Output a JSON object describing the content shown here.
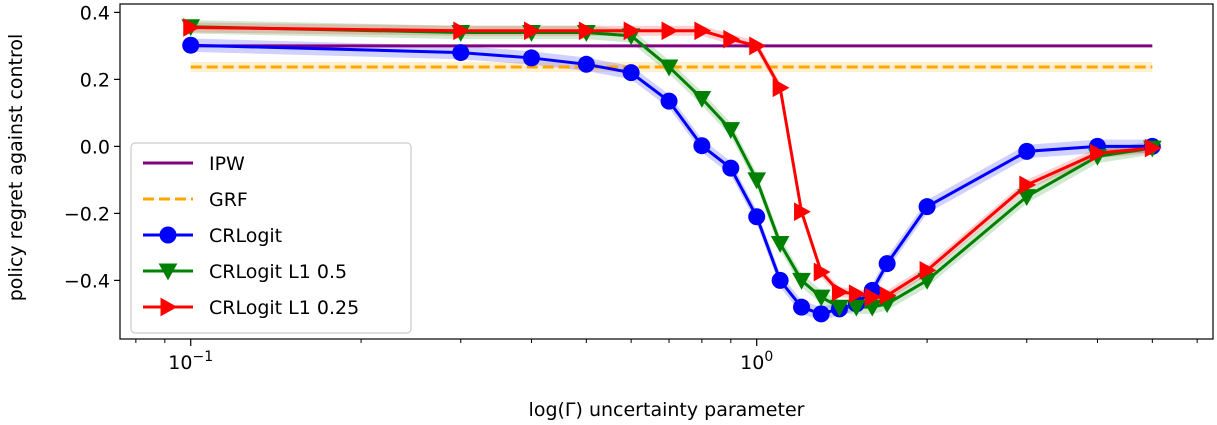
{
  "chart_data": {
    "type": "line",
    "xscale": "log",
    "xlabel": "log(Γ) uncertainty parameter",
    "ylabel": "policy regret against control",
    "xlim": [
      0.075,
      6.4
    ],
    "ylim": [
      -0.575,
      0.425
    ],
    "xticks": [
      {
        "value": 0.1,
        "base": "10",
        "exp": "−1"
      },
      {
        "value": 1,
        "base": "10",
        "exp": "0"
      }
    ],
    "yticks": [
      {
        "value": 0.4,
        "label": "0.4"
      },
      {
        "value": 0.2,
        "label": "0.2"
      },
      {
        "value": 0.0,
        "label": "0.0"
      },
      {
        "value": -0.2,
        "label": "−0.2"
      },
      {
        "value": -0.4,
        "label": "−0.4"
      }
    ],
    "grid": false,
    "legend_position": "lower-left",
    "series": [
      {
        "name": "IPW",
        "style": "solid",
        "color": "#800080",
        "marker": "none",
        "x": [
          0.1,
          5.0
        ],
        "y": [
          0.3,
          0.3
        ]
      },
      {
        "name": "GRF",
        "style": "dashed",
        "color": "#ffa500",
        "marker": "none",
        "band": 0.015,
        "x": [
          0.1,
          5.0
        ],
        "y": [
          0.237,
          0.237
        ]
      },
      {
        "name": "CRLogit",
        "style": "solid",
        "color": "#0000ff",
        "marker": "circle",
        "band": 0.02,
        "x": [
          0.1,
          0.3,
          0.4,
          0.5,
          0.6,
          0.7,
          0.8,
          0.9,
          1.0,
          1.1,
          1.2,
          1.3,
          1.4,
          1.5,
          1.6,
          1.7,
          2.0,
          3.0,
          4.0,
          5.0
        ],
        "y": [
          0.302,
          0.28,
          0.264,
          0.245,
          0.22,
          0.135,
          0.002,
          -0.065,
          -0.21,
          -0.4,
          -0.48,
          -0.5,
          -0.485,
          -0.47,
          -0.43,
          -0.35,
          -0.18,
          -0.015,
          0.0,
          0.0
        ]
      },
      {
        "name": "CRLogit L1 0.5",
        "style": "solid",
        "color": "#008000",
        "marker": "triangle-down",
        "band": 0.02,
        "x": [
          0.1,
          0.3,
          0.4,
          0.5,
          0.6,
          0.7,
          0.8,
          0.9,
          1.0,
          1.1,
          1.2,
          1.3,
          1.4,
          1.5,
          1.6,
          1.7,
          2.0,
          3.0,
          4.0,
          5.0
        ],
        "y": [
          0.357,
          0.34,
          0.34,
          0.34,
          0.33,
          0.237,
          0.143,
          0.05,
          -0.1,
          -0.29,
          -0.4,
          -0.45,
          -0.48,
          -0.48,
          -0.48,
          -0.47,
          -0.4,
          -0.15,
          -0.03,
          -0.005
        ]
      },
      {
        "name": "CRLogit L1 0.25",
        "style": "solid",
        "color": "#ff0000",
        "marker": "triangle-right",
        "band": 0.015,
        "x": [
          0.1,
          0.3,
          0.4,
          0.5,
          0.6,
          0.7,
          0.8,
          0.9,
          1.0,
          1.1,
          1.2,
          1.3,
          1.4,
          1.5,
          1.6,
          1.7,
          2.0,
          3.0,
          4.0,
          5.0
        ],
        "y": [
          0.355,
          0.345,
          0.345,
          0.345,
          0.345,
          0.345,
          0.345,
          0.32,
          0.3,
          0.175,
          -0.195,
          -0.375,
          -0.435,
          -0.44,
          -0.45,
          -0.445,
          -0.37,
          -0.115,
          -0.02,
          -0.005
        ]
      }
    ]
  }
}
